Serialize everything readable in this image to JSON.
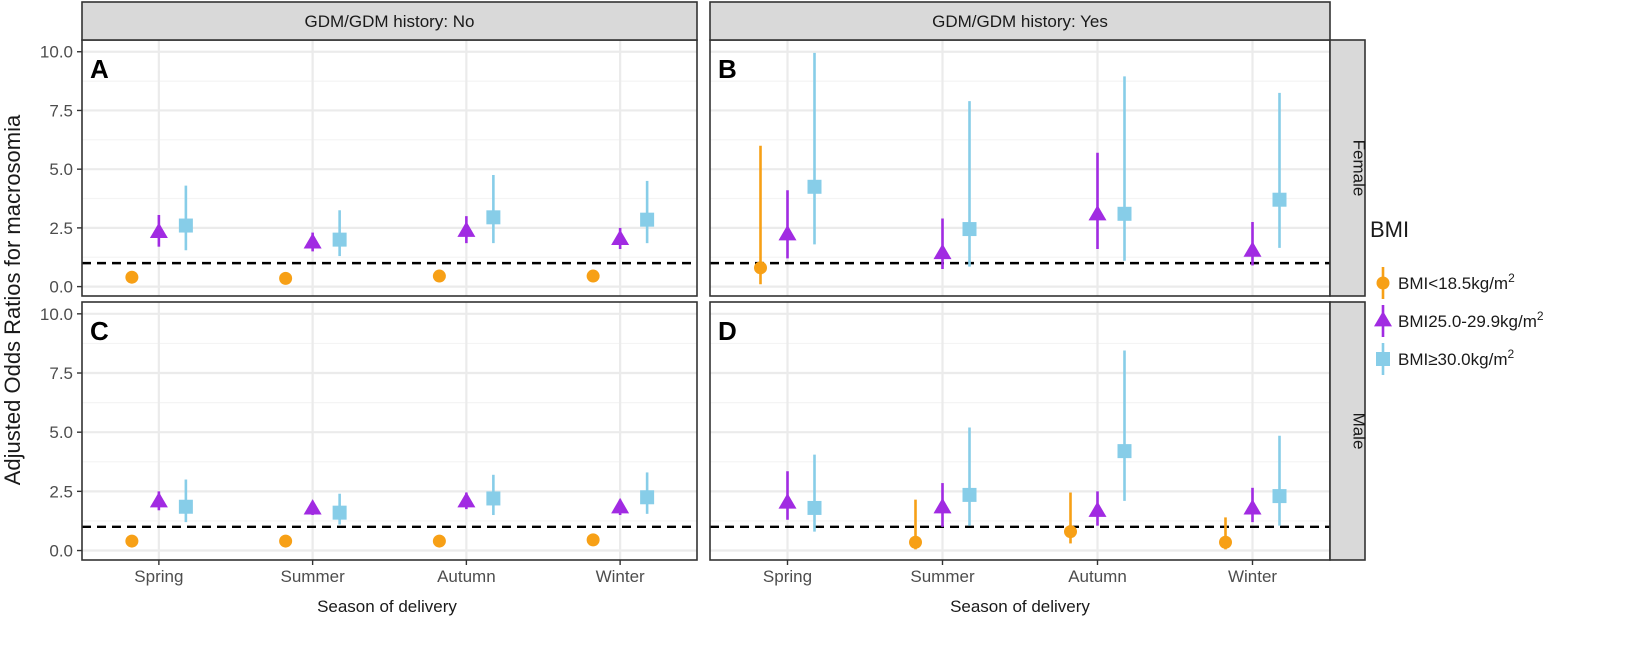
{
  "chart_data": {
    "type": "scatter",
    "subtype": "forest-plot-with-error-bars",
    "ylabel": "Adjusted Odds Ratios for macrosomia",
    "xlabel": "Season of delivery",
    "ylim": [
      -0.4,
      10.5
    ],
    "yticks": [
      "0.0",
      "2.5",
      "5.0",
      "7.5",
      "10.0"
    ],
    "reference_line": 1.0,
    "categories": [
      "Spring",
      "Summer",
      "Autumn",
      "Winter"
    ],
    "column_facets": [
      "GDM/GDM history: No",
      "GDM/GDM history: Yes"
    ],
    "row_facets": [
      "Female",
      "Male"
    ],
    "legend": {
      "title": "BMI",
      "position": "right",
      "items": [
        {
          "label_prefix": "BMI<18.5kg/m",
          "sup": "2",
          "color": "#f7a016",
          "shape": "circle"
        },
        {
          "label_prefix": "BMI25.0-29.9kg/m",
          "sup": "2",
          "color": "#a12be2",
          "shape": "triangle"
        },
        {
          "label_prefix": "BMI≥30.0kg/m",
          "sup": "2",
          "color": "#87cde8",
          "shape": "square"
        }
      ]
    },
    "panels": [
      {
        "tag": "A",
        "col": 0,
        "row": 0,
        "series": [
          {
            "name": "BMI<18.5kg/m2",
            "values": [
              0.4,
              0.35,
              0.45,
              0.45
            ],
            "lower": [
              null,
              null,
              null,
              null
            ],
            "upper": [
              null,
              null,
              null,
              null
            ]
          },
          {
            "name": "BMI25.0-29.9kg/m2",
            "values": [
              2.3,
              1.85,
              2.35,
              2.0
            ],
            "lower": [
              1.7,
              1.5,
              1.85,
              1.6
            ],
            "upper": [
              3.05,
              2.3,
              3.0,
              2.5
            ]
          },
          {
            "name": "BMI≥30.0kg/m2",
            "values": [
              2.6,
              2.0,
              2.95,
              2.85
            ],
            "lower": [
              1.55,
              1.3,
              1.85,
              1.85
            ],
            "upper": [
              4.3,
              3.25,
              4.75,
              4.5
            ]
          }
        ]
      },
      {
        "tag": "B",
        "col": 1,
        "row": 0,
        "series": [
          {
            "name": "BMI<18.5kg/m2",
            "values": [
              0.8,
              null,
              null,
              null
            ],
            "lower": [
              0.1,
              null,
              null,
              null
            ],
            "upper": [
              6.0,
              null,
              null,
              null
            ]
          },
          {
            "name": "BMI25.0-29.9kg/m2",
            "values": [
              2.2,
              1.4,
              3.05,
              1.5
            ],
            "lower": [
              1.2,
              0.75,
              1.6,
              0.9
            ],
            "upper": [
              4.1,
              2.9,
              5.7,
              2.75
            ]
          },
          {
            "name": "BMI≥30.0kg/m2",
            "values": [
              4.25,
              2.45,
              3.1,
              3.7
            ],
            "lower": [
              1.8,
              0.85,
              1.1,
              1.65
            ],
            "upper": [
              9.95,
              7.9,
              8.95,
              8.25
            ]
          }
        ]
      },
      {
        "tag": "C",
        "col": 0,
        "row": 1,
        "series": [
          {
            "name": "BMI<18.5kg/m2",
            "values": [
              0.4,
              0.4,
              0.4,
              0.45
            ],
            "lower": [
              null,
              null,
              null,
              null
            ],
            "upper": [
              null,
              null,
              null,
              null
            ]
          },
          {
            "name": "BMI25.0-29.9kg/m2",
            "values": [
              2.05,
              1.75,
              2.05,
              1.8
            ],
            "lower": [
              1.7,
              1.5,
              1.75,
              1.5
            ],
            "upper": [
              2.5,
              2.0,
              2.45,
              2.15
            ]
          },
          {
            "name": "BMI≥30.0kg/m2",
            "values": [
              1.85,
              1.6,
              2.2,
              2.25
            ],
            "lower": [
              1.2,
              1.1,
              1.5,
              1.55
            ],
            "upper": [
              3.0,
              2.4,
              3.2,
              3.3
            ]
          }
        ]
      },
      {
        "tag": "D",
        "col": 1,
        "row": 1,
        "series": [
          {
            "name": "BMI<18.5kg/m2",
            "values": [
              null,
              0.35,
              0.8,
              0.35
            ],
            "lower": [
              null,
              0.05,
              0.3,
              0.05
            ],
            "upper": [
              null,
              2.15,
              2.45,
              1.4
            ]
          },
          {
            "name": "BMI25.0-29.9kg/m2",
            "values": [
              2.0,
              1.8,
              1.65,
              1.75
            ],
            "lower": [
              1.3,
              1.0,
              1.05,
              1.2
            ],
            "upper": [
              3.35,
              2.85,
              2.5,
              2.65
            ]
          },
          {
            "name": "BMI≥30.0kg/m2",
            "values": [
              1.8,
              2.35,
              4.2,
              2.3
            ],
            "lower": [
              0.8,
              1.05,
              2.1,
              1.05
            ],
            "upper": [
              4.05,
              5.2,
              8.45,
              4.85
            ]
          }
        ]
      }
    ]
  }
}
